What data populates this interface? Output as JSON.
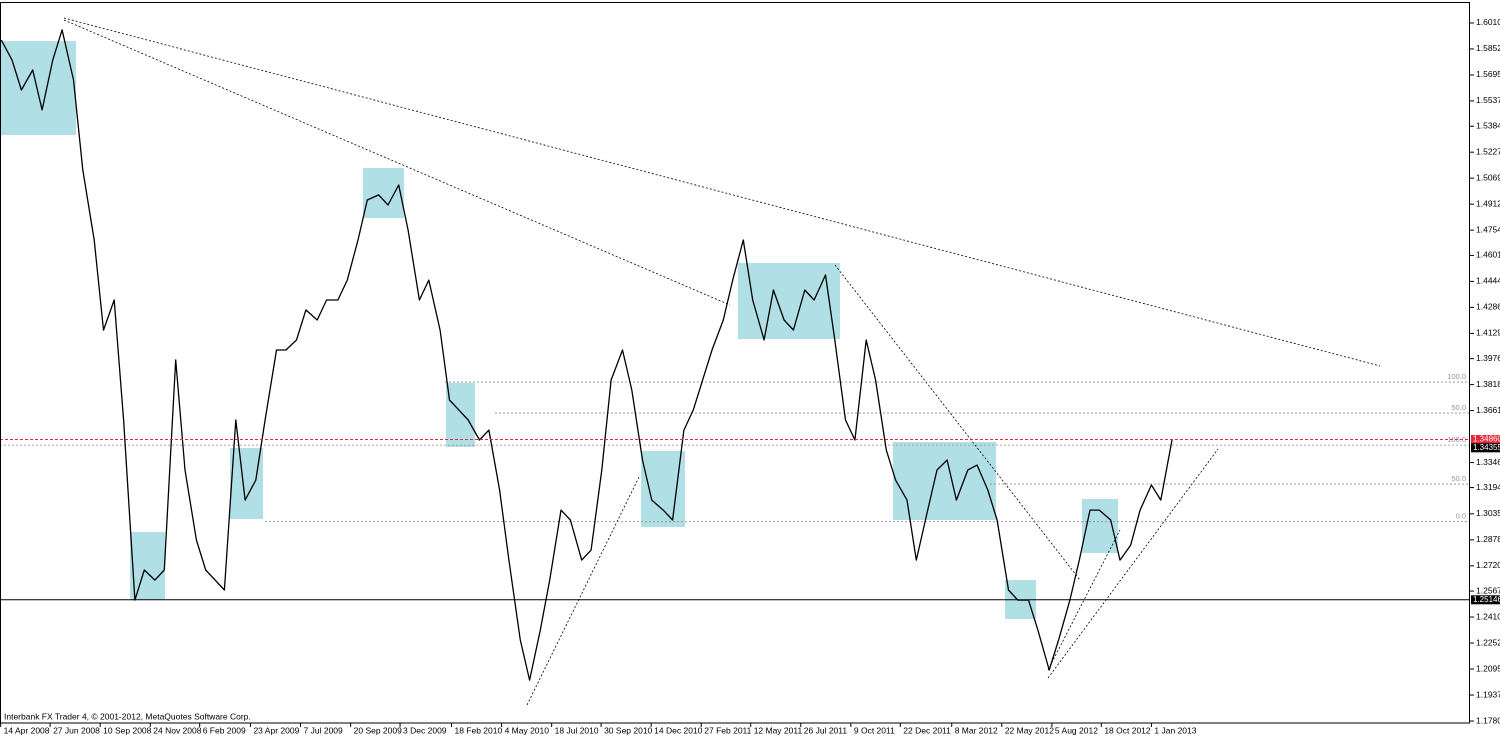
{
  "chart_data": {
    "type": "line",
    "caption": "Interbank FX Trader 4, © 2001-2012, MetaQuotes Software Corp.",
    "x": [
      "2008-04-15",
      "2008-05-01",
      "2008-05-15",
      "2008-06-01",
      "2008-06-15",
      "2008-07-01",
      "2008-07-15",
      "2008-08-01",
      "2008-08-15",
      "2008-09-01",
      "2008-09-15",
      "2008-10-01",
      "2008-10-15",
      "2008-11-01",
      "2008-11-15",
      "2008-12-01",
      "2008-12-15",
      "2009-01-01",
      "2009-01-15",
      "2009-02-01",
      "2009-02-15",
      "2009-03-01",
      "2009-03-15",
      "2009-04-01",
      "2009-04-15",
      "2009-05-01",
      "2009-05-15",
      "2009-06-01",
      "2009-06-15",
      "2009-07-01",
      "2009-07-15",
      "2009-08-01",
      "2009-08-15",
      "2009-09-01",
      "2009-09-15",
      "2009-10-01",
      "2009-10-15",
      "2009-11-01",
      "2009-11-15",
      "2009-12-01",
      "2009-12-15",
      "2010-01-01",
      "2010-01-15",
      "2010-02-01",
      "2010-02-15",
      "2010-03-01",
      "2010-03-15",
      "2010-04-01",
      "2010-04-15",
      "2010-05-01",
      "2010-05-15",
      "2010-06-01",
      "2010-06-15",
      "2010-07-01",
      "2010-07-15",
      "2010-08-01",
      "2010-08-15",
      "2010-09-01",
      "2010-09-15",
      "2010-10-01",
      "2010-10-15",
      "2010-11-01",
      "2010-11-15",
      "2010-12-01",
      "2010-12-15",
      "2011-01-01",
      "2011-01-15",
      "2011-02-01",
      "2011-02-15",
      "2011-03-01",
      "2011-03-15",
      "2011-04-01",
      "2011-04-15",
      "2011-05-01",
      "2011-05-15",
      "2011-06-01",
      "2011-06-15",
      "2011-07-01",
      "2011-07-15",
      "2011-08-01",
      "2011-08-15",
      "2011-09-01",
      "2011-09-15",
      "2011-10-01",
      "2011-10-15",
      "2011-11-01",
      "2011-11-15",
      "2011-12-01",
      "2011-12-15",
      "2012-01-01",
      "2012-01-15",
      "2012-02-01",
      "2012-02-15",
      "2012-03-01",
      "2012-03-15",
      "2012-04-01",
      "2012-04-15",
      "2012-05-01",
      "2012-05-15",
      "2012-06-01",
      "2012-06-15",
      "2012-07-01",
      "2012-07-15",
      "2012-08-01",
      "2012-08-15",
      "2012-09-01",
      "2012-09-15",
      "2012-10-01",
      "2012-10-15",
      "2012-11-01",
      "2012-11-15",
      "2012-12-01",
      "2012-12-15",
      "2013-01-01",
      "2013-01-15",
      "2013-02-01"
    ],
    "series": [
      {
        "color": "#000000",
        "values": [
          1.5907,
          1.5786,
          1.5604,
          1.5725,
          1.5483,
          1.5786,
          1.5968,
          1.5665,
          1.5119,
          1.4695,
          1.4149,
          1.4331,
          1.3604,
          1.2513,
          1.2695,
          1.2634,
          1.2695,
          1.3968,
          1.3301,
          1.2877,
          1.2695,
          1.2634,
          1.2574,
          1.3604,
          1.3119,
          1.324,
          1.3604,
          1.4028,
          1.4028,
          1.4089,
          1.4271,
          1.421,
          1.4331,
          1.4331,
          1.4452,
          1.4695,
          1.4937,
          1.4968,
          1.4907,
          1.5028,
          1.4755,
          1.4331,
          1.4452,
          1.4149,
          1.3725,
          1.3665,
          1.3604,
          1.3483,
          1.3543,
          1.318,
          1.2755,
          1.2271,
          1.2028,
          1.2331,
          1.2634,
          1.3058,
          1.2998,
          1.2755,
          1.2816,
          1.3301,
          1.3846,
          1.4028,
          1.3786,
          1.3362,
          1.3119,
          1.3058,
          1.2998,
          1.3543,
          1.3665,
          1.3846,
          1.4028,
          1.421,
          1.4452,
          1.4695,
          1.4331,
          1.4089,
          1.4392,
          1.421,
          1.4149,
          1.4392,
          1.4331,
          1.4483,
          1.4089,
          1.3604,
          1.3483,
          1.4089,
          1.3846,
          1.3422,
          1.324,
          1.3119,
          1.2755,
          1.3058,
          1.3301,
          1.3362,
          1.3119,
          1.3301,
          1.3331,
          1.318,
          1.2998,
          1.2574,
          1.2513,
          1.2513,
          1.2331,
          1.2089,
          1.2271,
          1.2513,
          1.2755,
          1.3058,
          1.3058,
          1.2998,
          1.2755,
          1.2846,
          1.3058,
          1.321,
          1.3119,
          1.3486
        ]
      }
    ],
    "xlim": [
      "2008-04-13",
      "2014-04-23"
    ],
    "xticks": [
      {
        "value": "2008-04-14",
        "label": "14 Apr 2008"
      },
      {
        "value": "2008-06-27",
        "label": "27 Jun 2008"
      },
      {
        "value": "2008-09-10",
        "label": "10 Sep 2008"
      },
      {
        "value": "2008-11-24",
        "label": "24 Nov 2008"
      },
      {
        "value": "2009-02-06",
        "label": "6 Feb 2009"
      },
      {
        "value": "2009-04-23",
        "label": "23 Apr 2009"
      },
      {
        "value": "2009-07-07",
        "label": "7 Jul 2009"
      },
      {
        "value": "2009-09-20",
        "label": "20 Sep 2009"
      },
      {
        "value": "2009-12-03",
        "label": "3 Dec 2009"
      },
      {
        "value": "2010-02-18",
        "label": "18 Feb 2010"
      },
      {
        "value": "2010-05-04",
        "label": "4 May 2010"
      },
      {
        "value": "2010-07-18",
        "label": "18 Jul 2010"
      },
      {
        "value": "2010-09-30",
        "label": "30 Sep 2010"
      },
      {
        "value": "2010-12-14",
        "label": "14 Dec 2010"
      },
      {
        "value": "2011-02-27",
        "label": "27 Feb 2011"
      },
      {
        "value": "2011-05-12",
        "label": "12 May 2011"
      },
      {
        "value": "2011-07-26",
        "label": "26 Jul 2011"
      },
      {
        "value": "2011-10-09",
        "label": "9 Oct 2011"
      },
      {
        "value": "2011-12-22",
        "label": "22 Dec 2011"
      },
      {
        "value": "2012-03-08",
        "label": "8 Mar 2012"
      },
      {
        "value": "2012-05-22",
        "label": "22 May 2012"
      },
      {
        "value": "2012-08-05",
        "label": "5 Aug 2012"
      },
      {
        "value": "2012-10-18",
        "label": "18 Oct 2012"
      },
      {
        "value": "2013-01-01",
        "label": "1 Jan 2013"
      }
    ],
    "ylim": [
      1.1768,
      1.6131
    ],
    "yticks": [
      {
        "value": 1.601,
        "label": "1.60100"
      },
      {
        "value": 1.58525,
        "label": "1.58525"
      },
      {
        "value": 1.5695,
        "label": "1.56950"
      },
      {
        "value": 1.55375,
        "label": "1.55375"
      },
      {
        "value": 1.5384,
        "label": "1.53840"
      },
      {
        "value": 1.5227,
        "label": "1.52270"
      },
      {
        "value": 1.50695,
        "label": "1.50695"
      },
      {
        "value": 1.4912,
        "label": "1.49120"
      },
      {
        "value": 1.47545,
        "label": "1.47545"
      },
      {
        "value": 1.46015,
        "label": "1.46015"
      },
      {
        "value": 1.4444,
        "label": "1.44440"
      },
      {
        "value": 1.42865,
        "label": "1.42865"
      },
      {
        "value": 1.4129,
        "label": "1.41290"
      },
      {
        "value": 1.3976,
        "label": "1.39760"
      },
      {
        "value": 1.38185,
        "label": "1.38185"
      },
      {
        "value": 1.3661,
        "label": "1.36610"
      },
      {
        "value": 1.3346,
        "label": "1.33460"
      },
      {
        "value": 1.31945,
        "label": "1.31945"
      },
      {
        "value": 1.30355,
        "label": "1.30355"
      },
      {
        "value": 1.2878,
        "label": "1.28780"
      },
      {
        "value": 1.27205,
        "label": "1.27205"
      },
      {
        "value": 1.25675,
        "label": "1.25675"
      },
      {
        "value": 1.241,
        "label": "1.24100"
      },
      {
        "value": 1.22525,
        "label": "1.22525"
      },
      {
        "value": 1.2095,
        "label": "1.20950"
      },
      {
        "value": 1.19375,
        "label": "1.19375"
      },
      {
        "value": 1.178,
        "label": "1.17800"
      }
    ],
    "price_markers": [
      {
        "value": 1.3486,
        "label": "1.34860",
        "color": "#e8283a",
        "line": "dashed"
      },
      {
        "value": 1.34355,
        "label": "1.34355",
        "color": "#000000"
      },
      {
        "value": 1.25146,
        "label": "1.25146",
        "color": "#000000",
        "line": "solid"
      }
    ],
    "levels": [
      {
        "value": 1.3834,
        "label": "100.0"
      },
      {
        "value": 1.3646,
        "label": "50.0"
      },
      {
        "value": 1.3452,
        "label": "100.0"
      },
      {
        "value": 1.3216,
        "label": "50.0"
      },
      {
        "value": 1.2988,
        "label": "0.0"
      }
    ]
  }
}
